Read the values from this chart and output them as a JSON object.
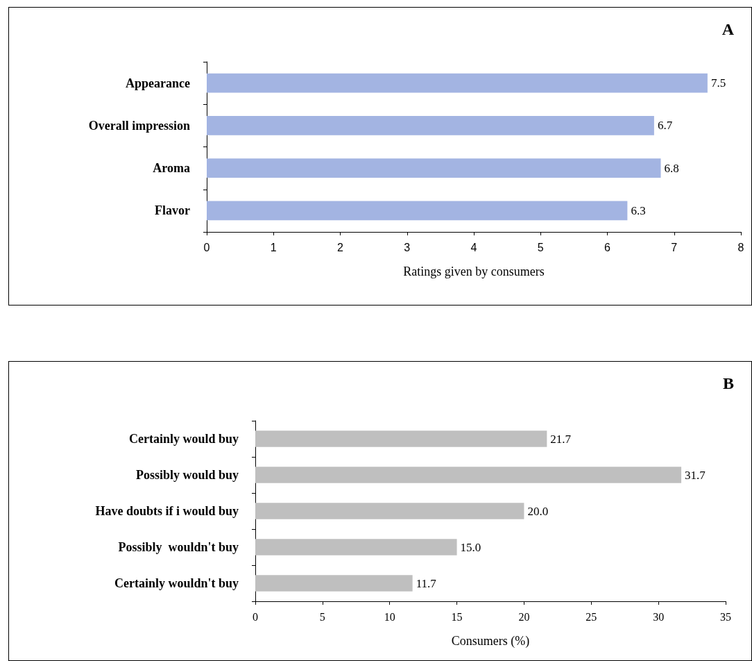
{
  "chart_data": [
    {
      "type": "bar",
      "orientation": "horizontal",
      "title": "A",
      "categories": [
        "Appearance",
        "Overall impression",
        "Aroma",
        "Flavor"
      ],
      "values": [
        7.5,
        6.7,
        6.8,
        6.3
      ],
      "color": "#a3b4e2",
      "xlabel": "Ratings given by consumers",
      "xlim": [
        0,
        8
      ],
      "xticks": [
        0,
        1,
        2,
        3,
        4,
        5,
        6,
        7,
        8
      ],
      "data_labels": true
    },
    {
      "type": "bar",
      "orientation": "horizontal",
      "title": "B",
      "categories": [
        "Certainly would buy",
        "Possibly would buy",
        "Have doubts if i would buy",
        "Possibly  wouldn't buy",
        "Certainly wouldn't buy"
      ],
      "values": [
        21.7,
        31.7,
        20.0,
        15.0,
        11.7
      ],
      "value_labels": [
        "21.7",
        "31.7",
        "20.0",
        "15.0",
        "11.7"
      ],
      "color": "#bfbfbf",
      "xlabel": "Consumers (%)",
      "xlim": [
        0,
        35
      ],
      "xticks": [
        0,
        5,
        10,
        15,
        20,
        25,
        30,
        35
      ]
    }
  ]
}
